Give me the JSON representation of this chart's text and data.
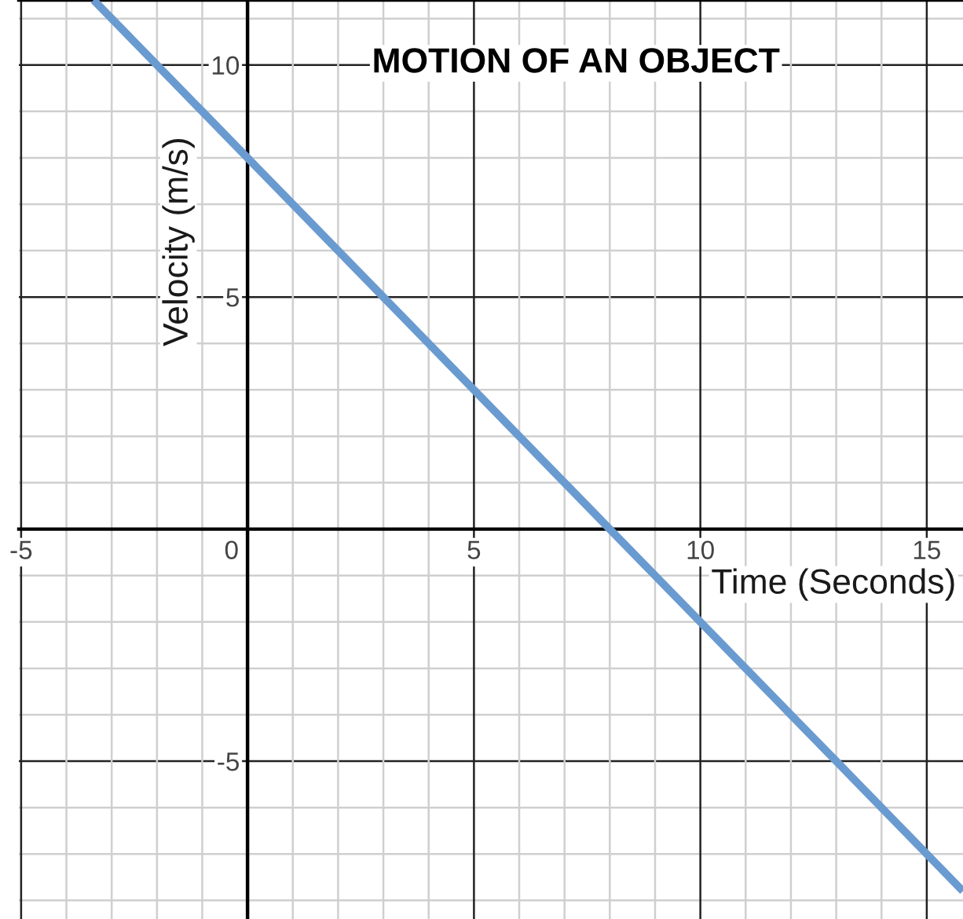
{
  "chart_data": {
    "type": "line",
    "title": "MOTION OF AN OBJECT",
    "xlabel": "Time (Seconds)",
    "ylabel": "Velocity (m/s)",
    "x": [
      -3.4,
      0,
      3,
      8,
      13,
      15.8
    ],
    "series": [
      {
        "color": "#6a9bd0",
        "values": [
          11.4,
          8,
          5,
          0,
          -5,
          -7.8
        ]
      }
    ],
    "xlim": [
      -5.05,
      15.8
    ],
    "ylim": [
      -8.4,
      11.4
    ],
    "xticks": [
      -5,
      {
        "value": -4,
        "label": null
      },
      {
        "value": -3,
        "label": null
      },
      {
        "value": -2,
        "label": null
      },
      {
        "value": -1,
        "label": null
      },
      0,
      {
        "value": 1,
        "label": null
      },
      {
        "value": 2,
        "label": null
      },
      {
        "value": 3,
        "label": null
      },
      {
        "value": 4,
        "label": null
      },
      5,
      {
        "value": 6,
        "label": null
      },
      {
        "value": 7,
        "label": null
      },
      {
        "value": 8,
        "label": null
      },
      {
        "value": 9,
        "label": null
      },
      10,
      {
        "value": 11,
        "label": null
      },
      {
        "value": 12,
        "label": null
      },
      {
        "value": 13,
        "label": null
      },
      {
        "value": 14,
        "label": null
      },
      15
    ],
    "yticks": [
      {
        "value": -8,
        "label": null
      },
      {
        "value": -7,
        "label": null
      },
      {
        "value": -6,
        "label": null
      },
      -5,
      {
        "value": -4,
        "label": null
      },
      {
        "value": -3,
        "label": null
      },
      {
        "value": -2,
        "label": null
      },
      {
        "value": -1,
        "label": null
      },
      {
        "value": 0,
        "label": null
      },
      {
        "value": 1,
        "label": null
      },
      {
        "value": 2,
        "label": null
      },
      {
        "value": 3,
        "label": null
      },
      {
        "value": 4,
        "label": null
      },
      5,
      {
        "value": 6,
        "label": null
      },
      {
        "value": 7,
        "label": null
      },
      {
        "value": 8,
        "label": null
      },
      {
        "value": 9,
        "label": null
      },
      10,
      {
        "value": 11,
        "label": null
      }
    ],
    "grid": true,
    "marker": "none",
    "line_style": "solid"
  }
}
